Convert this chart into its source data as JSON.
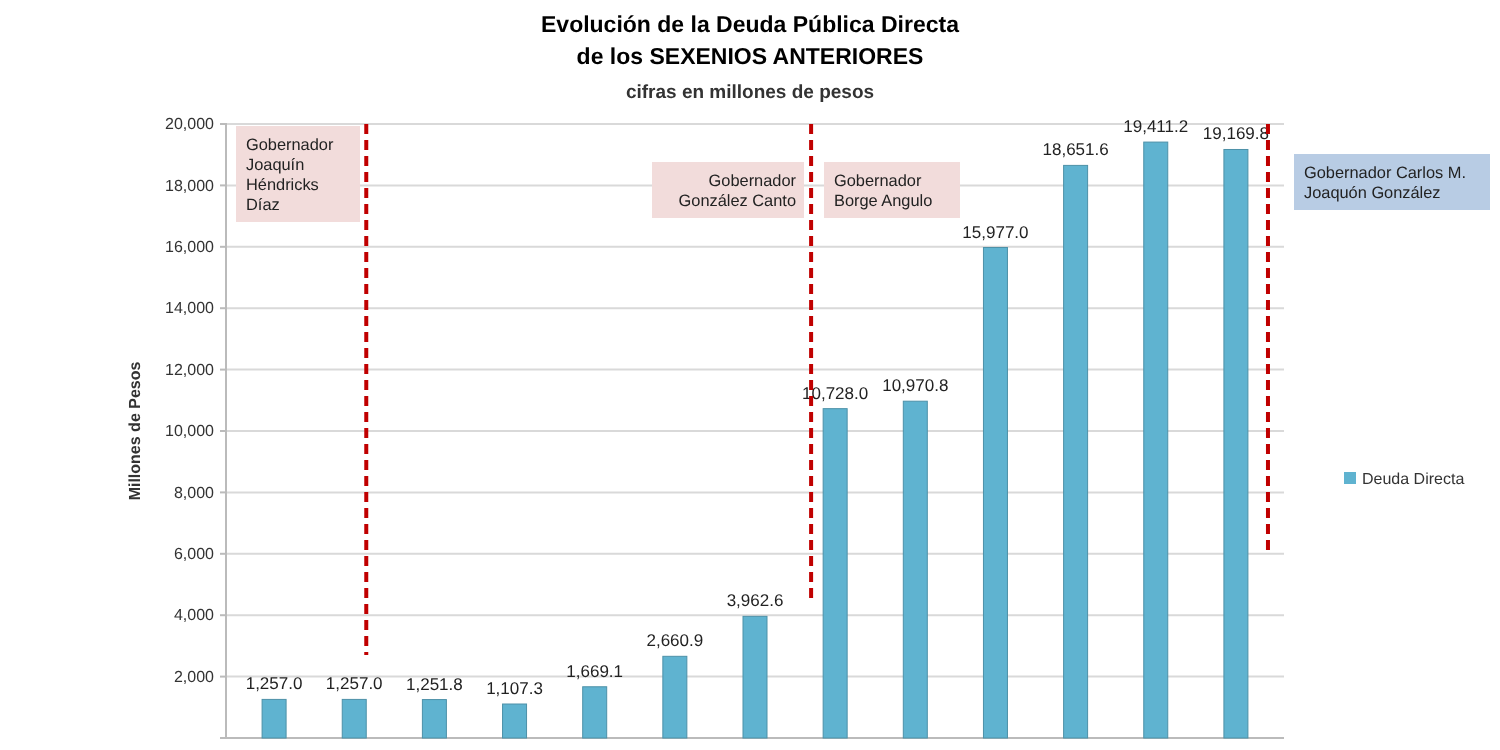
{
  "chart_data": {
    "type": "bar",
    "title": "Evolución de la Deuda Pública Directa de los SEXENIOS ANTERIORES",
    "subtitle": "cifras en millones de pesos",
    "ylabel": "Millones de Pesos",
    "categories": [
      null,
      null,
      null,
      null,
      null,
      null,
      null,
      null,
      null,
      null,
      null,
      null,
      null
    ],
    "series": [
      {
        "name": "Deuda Directa",
        "color": "#5fb3d0",
        "values": [
          1257.0,
          1257.0,
          1251.8,
          1107.3,
          1669.1,
          2660.9,
          3962.6,
          10728.0,
          10970.8,
          15977.0,
          18651.6,
          19411.2,
          19169.8
        ],
        "value_labels": [
          "1,257.0",
          "1,257.0",
          "1,251.8",
          "1,107.3",
          "1,669.1",
          "2,660.9",
          "3,962.6",
          "10,728.0",
          "10,970.8",
          "15,977.0",
          "18,651.6",
          "19,411.2",
          "19,169.8"
        ]
      }
    ],
    "ylim": [
      0,
      20000
    ],
    "yticks": [
      {
        "value": 2000,
        "label": "2,000"
      },
      {
        "value": 4000,
        "label": "4,000"
      },
      {
        "value": 6000,
        "label": "6,000"
      },
      {
        "value": 8000,
        "label": "8,000"
      },
      {
        "value": 10000,
        "label": "10,000"
      },
      {
        "value": 12000,
        "label": "12,000"
      },
      {
        "value": 14000,
        "label": "14,000"
      },
      {
        "value": 16000,
        "label": "16,000"
      },
      {
        "value": 18000,
        "label": "18,000"
      },
      {
        "value": 20000,
        "label": "20,000"
      }
    ],
    "grid": "y",
    "legend": "right",
    "annotations": [
      "Gobernador Joaquín Héndricks Díaz",
      "Gobernador González Canto",
      "Gobernador Borge Angulo",
      "Gobernador Carlos M. Joaquón González"
    ]
  }
}
